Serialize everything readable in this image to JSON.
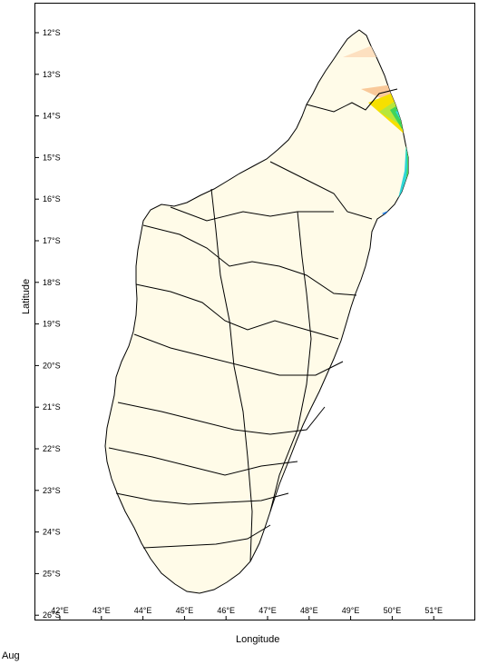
{
  "map": {
    "xlabel": "Longitude",
    "ylabel": "Latitude",
    "month": "Aug",
    "lon_ticks": [
      "42°E",
      "43°E",
      "44°E",
      "45°E",
      "46°E",
      "47°E",
      "48°E",
      "49°E",
      "50°E",
      "51°E"
    ],
    "lat_ticks": [
      "12°S",
      "13°S",
      "14°S",
      "15°S",
      "16°S",
      "17°S",
      "18°S",
      "19°S",
      "20°S",
      "21°S",
      "22°S",
      "23°S",
      "24°S",
      "25°S",
      "26°S"
    ],
    "colors": {
      "land_base": "#fffbe8",
      "light_peach": "#fde0c0",
      "peach": "#f9c99a",
      "orange": "#f5b36a",
      "yellow": "#f6e000",
      "yellow_green": "#b7e63c",
      "green": "#3fd45a",
      "cyan": "#2fd6d6",
      "blue": "#1f7be6",
      "dark_blue": "#1a1ad0",
      "border": "#000000"
    }
  }
}
